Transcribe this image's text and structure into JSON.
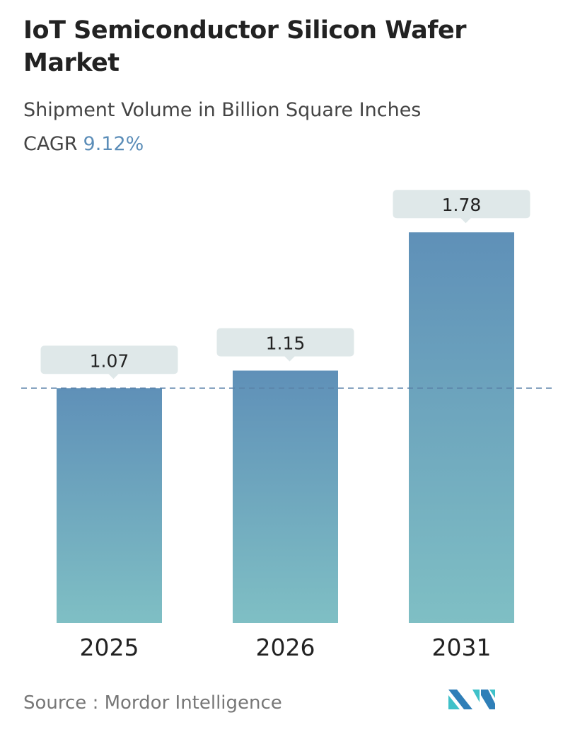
{
  "header": {
    "title": "IoT Semiconductor Silicon Wafer Market",
    "subtitle": "Shipment Volume in Billion Square Inches",
    "cagr_label": "CAGR",
    "cagr_value": "9.12%"
  },
  "chart_data": {
    "type": "bar",
    "categories": [
      "2025",
      "2026",
      "2031"
    ],
    "values": [
      1.07,
      1.15,
      1.78
    ],
    "data_labels": [
      "1.07",
      "1.15",
      "1.78"
    ],
    "reference_line": {
      "value": 1.07,
      "style": "dashed"
    },
    "ylim": [
      0,
      1.8
    ],
    "grid": false,
    "colors": {
      "bar_top": "#5f90b8",
      "bar_bottom": "#7fbfc4",
      "label_box": "#dfe8e9",
      "reference_line": "#5a82a8"
    }
  },
  "footer": {
    "source": "Source :  Mordor Intelligence",
    "logo_text": "Mordor Intelligence"
  }
}
